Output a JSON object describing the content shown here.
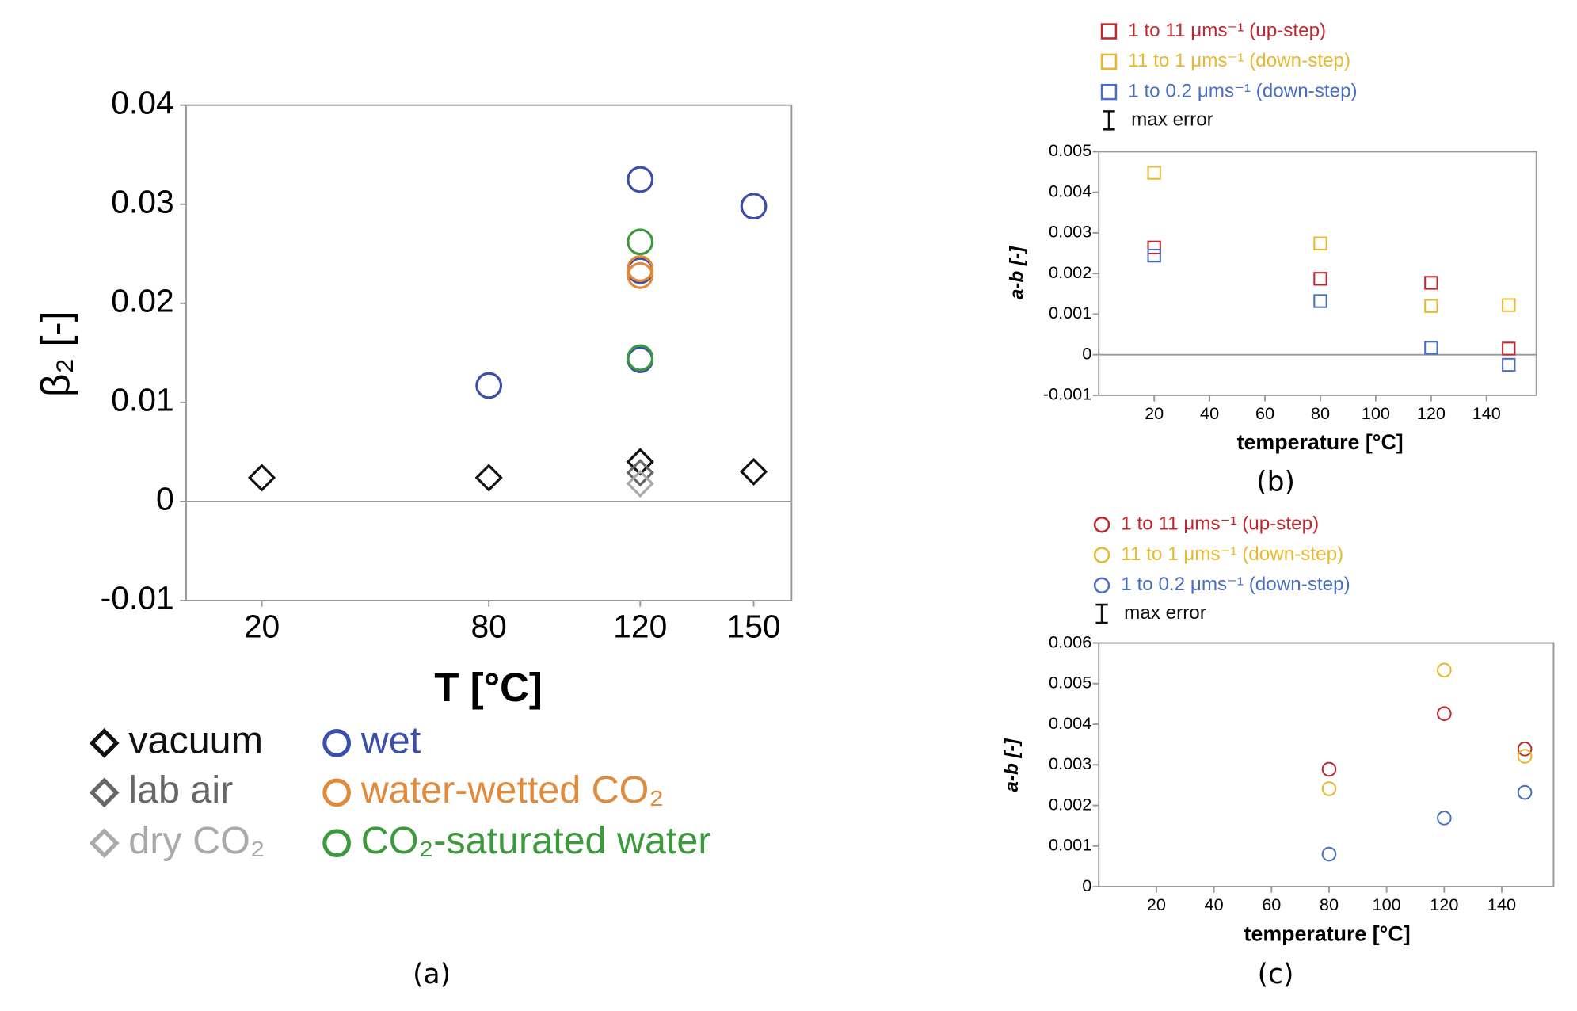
{
  "chart_data": [
    {
      "type": "scatter",
      "caption": "(a)",
      "xlabel": "T [°C]",
      "ylabel": "β₂ [-]",
      "xlim": [
        0,
        160
      ],
      "ylim": [
        -0.01,
        0.04
      ],
      "xticks": [
        20,
        80,
        120,
        150
      ],
      "yticks": [
        -0.01,
        0,
        0.01,
        0.02,
        0.03,
        0.04
      ],
      "series": [
        {
          "name": "vacuum",
          "color": "#111111",
          "marker": "diamond",
          "x": [
            20,
            80,
            120,
            150
          ],
          "values": [
            0.0024,
            0.0024,
            0.004,
            0.003
          ]
        },
        {
          "name": "lab air",
          "color": "#666666",
          "marker": "diamond",
          "x": [
            120
          ],
          "values": [
            0.0029
          ]
        },
        {
          "name": "dry CO₂",
          "color": "#aaaaaa",
          "marker": "diamond",
          "x": [
            120
          ],
          "values": [
            0.0018
          ]
        },
        {
          "name": "wet",
          "color": "#3a4fa8",
          "marker": "circle",
          "x": [
            80,
            120,
            120,
            120,
            150
          ],
          "values": [
            0.0117,
            0.0325,
            0.0233,
            0.0143,
            0.0298
          ]
        },
        {
          "name": "water-wetted CO₂",
          "color": "#e08a3c",
          "marker": "circle",
          "x": [
            120,
            120
          ],
          "values": [
            0.0228,
            0.0235
          ]
        },
        {
          "name": "CO₂-saturated water",
          "color": "#3c9a3c",
          "marker": "circle",
          "x": [
            120,
            120
          ],
          "values": [
            0.0262,
            0.0145
          ]
        }
      ]
    },
    {
      "type": "scatter",
      "caption": "(b)",
      "xlabel": "temperature [°C]",
      "ylabel": "a-b [-]",
      "error_label": "max error",
      "xlim": [
        0,
        158
      ],
      "ylim": [
        -0.001,
        0.005
      ],
      "xticks": [
        20,
        40,
        60,
        80,
        100,
        120,
        140
      ],
      "yticks": [
        -0.001,
        0,
        0.001,
        0.002,
        0.003,
        0.004,
        0.005
      ],
      "series": [
        {
          "name": "1 to 11 μms⁻¹ (up-step)",
          "color": "#c0282f",
          "marker": "square",
          "x": [
            20,
            80,
            120,
            148
          ],
          "values": [
            0.00264,
            0.00187,
            0.00177,
            0.00015
          ]
        },
        {
          "name": "11 to 1 μms⁻¹ (down-step)",
          "color": "#e8b830",
          "marker": "square",
          "x": [
            20,
            80,
            120,
            148
          ],
          "values": [
            0.00448,
            0.00274,
            0.0012,
            0.00122
          ]
        },
        {
          "name": "1 to 0.2 μms⁻¹ (down-step)",
          "color": "#4a6fc0",
          "marker": "square",
          "x": [
            20,
            80,
            120,
            148
          ],
          "values": [
            0.00244,
            0.00132,
            0.00017,
            -0.00025
          ]
        }
      ]
    },
    {
      "type": "scatter",
      "caption": "(c)",
      "xlabel": "temperature [°C]",
      "ylabel": "a-b [-]",
      "error_label": "max error",
      "xlim": [
        0,
        158
      ],
      "ylim": [
        0,
        0.006
      ],
      "xticks": [
        20,
        40,
        60,
        80,
        100,
        120,
        140
      ],
      "yticks": [
        0,
        0.001,
        0.002,
        0.003,
        0.004,
        0.005,
        0.006
      ],
      "series": [
        {
          "name": "1 to 11 μms⁻¹ (up-step)",
          "color": "#c0282f",
          "marker": "circle",
          "x": [
            80,
            120,
            148
          ],
          "values": [
            0.00289,
            0.00426,
            0.00339
          ]
        },
        {
          "name": "11 to 1 μms⁻¹ (down-step)",
          "color": "#e8b830",
          "marker": "circle",
          "x": [
            80,
            120,
            148
          ],
          "values": [
            0.00241,
            0.00533,
            0.00321
          ]
        },
        {
          "name": "1 to 0.2 μms⁻¹ (down-step)",
          "color": "#4a6fc0",
          "marker": "circle",
          "x": [
            80,
            120,
            148
          ],
          "values": [
            0.0008,
            0.00169,
            0.00232
          ]
        }
      ]
    }
  ]
}
